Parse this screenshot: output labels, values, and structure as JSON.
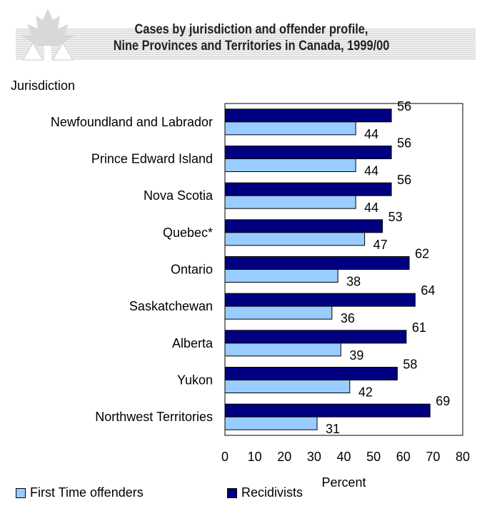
{
  "title": {
    "line1": "Cases by jurisdiction and offender profile,",
    "line2": "Nine Provinces and Territories in Canada, 1999/00"
  },
  "logo_icon": "maple-leaf-justice-icon",
  "colors": {
    "first_time": "#99ccff",
    "recidivists": "#000080"
  },
  "chart_data": {
    "type": "bar",
    "orientation": "horizontal",
    "categories": [
      "Newfoundland and Labrador",
      "Prince Edward Island",
      "Nova Scotia",
      "Quebec*",
      "Ontario",
      "Saskatchewan",
      "Alberta",
      "Yukon",
      "Northwest Territories"
    ],
    "series": [
      {
        "name": "Recidivists",
        "values": [
          56,
          56,
          56,
          53,
          62,
          64,
          61,
          58,
          69
        ]
      },
      {
        "name": "First Time offenders",
        "values": [
          44,
          44,
          44,
          47,
          38,
          36,
          39,
          42,
          31
        ]
      }
    ],
    "ylabel": "Jurisdiction",
    "xlabel": "Percent",
    "xlim": [
      0,
      80
    ],
    "xticks": [
      0,
      10,
      20,
      30,
      40,
      50,
      60,
      70,
      80
    ],
    "grid": false,
    "legend_position": "bottom"
  },
  "legend": [
    {
      "label": "First Time offenders"
    },
    {
      "label": "Recidivists"
    }
  ]
}
